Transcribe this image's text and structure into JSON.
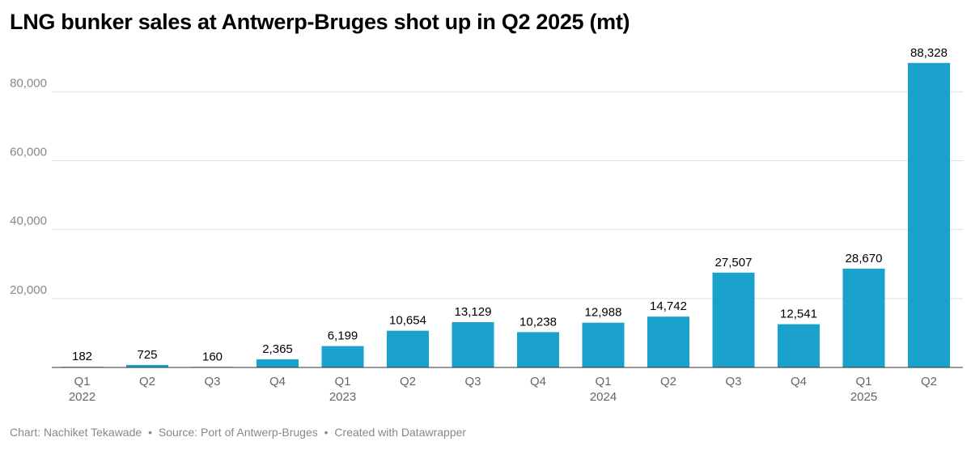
{
  "title": "LNG bunker sales at Antwerp-Bruges shot up in Q2 2025 (mt)",
  "footer": {
    "author": "Chart: Nachiket Tekawade",
    "source": "Source: Port of Antwerp-Bruges",
    "tool": "Created with Datawrapper",
    "separator": "•"
  },
  "chart_data": {
    "type": "bar",
    "title": "LNG bunker sales at Antwerp-Bruges shot up in Q2 2025 (mt)",
    "xlabel": "",
    "ylabel": "",
    "categories": [
      "Q1 2022",
      "Q2 2022",
      "Q3 2022",
      "Q4 2022",
      "Q1 2023",
      "Q2 2023",
      "Q3 2023",
      "Q4 2023",
      "Q1 2024",
      "Q2 2024",
      "Q3 2024",
      "Q4 2024",
      "Q1 2025",
      "Q2 2025"
    ],
    "tick_labels": [
      {
        "quarter": "Q1",
        "year": "2022"
      },
      {
        "quarter": "Q2",
        "year": ""
      },
      {
        "quarter": "Q3",
        "year": ""
      },
      {
        "quarter": "Q4",
        "year": ""
      },
      {
        "quarter": "Q1",
        "year": "2023"
      },
      {
        "quarter": "Q2",
        "year": ""
      },
      {
        "quarter": "Q3",
        "year": ""
      },
      {
        "quarter": "Q4",
        "year": ""
      },
      {
        "quarter": "Q1",
        "year": "2024"
      },
      {
        "quarter": "Q2",
        "year": ""
      },
      {
        "quarter": "Q3",
        "year": ""
      },
      {
        "quarter": "Q4",
        "year": ""
      },
      {
        "quarter": "Q1",
        "year": "2025"
      },
      {
        "quarter": "Q2",
        "year": ""
      }
    ],
    "values": [
      182,
      725,
      160,
      2365,
      6199,
      10654,
      13129,
      10238,
      12988,
      14742,
      27507,
      12541,
      28670,
      88328
    ],
    "value_labels": [
      "182",
      "725",
      "160",
      "2,365",
      "6,199",
      "10,654",
      "13,129",
      "10,238",
      "12,988",
      "14,742",
      "27,507",
      "12,541",
      "28,670",
      "88,328"
    ],
    "yticks": [
      20000,
      40000,
      60000,
      80000
    ],
    "ytick_labels": [
      "20,000",
      "40,000",
      "60,000",
      "80,000"
    ],
    "ylim": [
      0,
      92000
    ],
    "grid": true,
    "bar_color": "#1aa1cc",
    "gridline_color": "#e0e0e0",
    "baseline_color": "#333333"
  }
}
